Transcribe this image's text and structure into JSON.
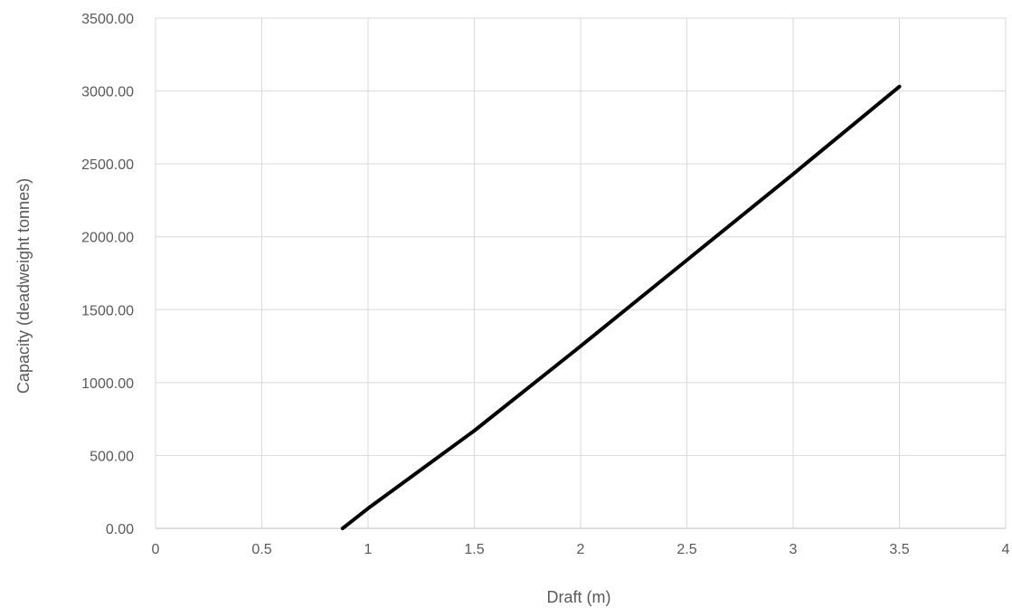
{
  "chart_data": {
    "type": "line",
    "title": "",
    "xlabel": "Draft (m)",
    "ylabel": "Capacity  (deadweight tonnes)",
    "xlim": [
      0,
      4
    ],
    "ylim": [
      0,
      3500
    ],
    "x_ticks": [
      "0",
      "0.5",
      "1",
      "1.5",
      "2",
      "2.5",
      "3",
      "3.5",
      "4"
    ],
    "y_ticks": [
      "0.00",
      "500.00",
      "1000.00",
      "1500.00",
      "2000.00",
      "2500.00",
      "3000.00",
      "3500.00"
    ],
    "grid": true,
    "series": [
      {
        "color": "#000000",
        "x": [
          0.88,
          1.0,
          1.5,
          2.0,
          2.5,
          3.0,
          3.5
        ],
        "y": [
          0,
          137,
          670,
          1250,
          1840,
          2430,
          3030
        ]
      }
    ]
  }
}
